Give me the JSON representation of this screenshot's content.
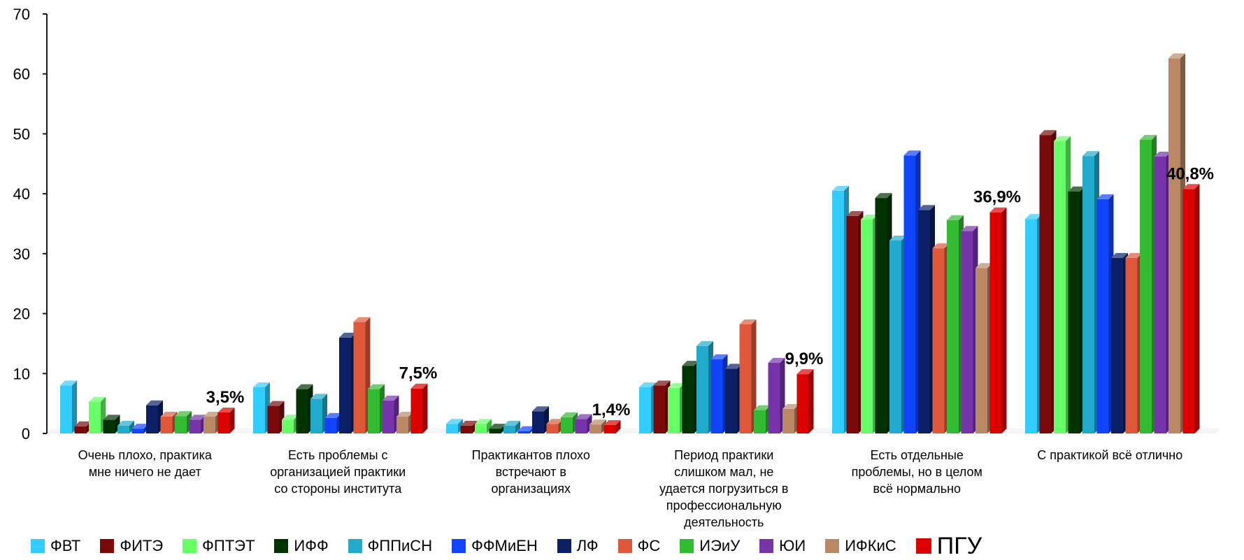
{
  "chart_data": {
    "type": "bar",
    "title": "",
    "xlabel": "",
    "ylabel": "",
    "ylim": [
      0,
      70
    ],
    "yticks": [
      0,
      10,
      20,
      30,
      40,
      50,
      60,
      70
    ],
    "grid": false,
    "legend_position": "bottom",
    "categories": [
      [
        "Очень плохо, практика",
        "мне ничего не дает"
      ],
      [
        "Есть проблемы с",
        "организацией практики",
        "со стороны института"
      ],
      [
        "Практикантов плохо",
        "встречают в",
        "организациях"
      ],
      [
        "Период практики",
        "слишком мал, не",
        "удается погрузиться в",
        "профессиональную",
        "деятельность"
      ],
      [
        "Есть отдельные",
        "проблемы, но в целом",
        "всё нормально"
      ],
      [
        "С практикой всё отлично"
      ]
    ],
    "series": [
      {
        "name": "ФВТ",
        "color": "#33CCFF",
        "values": [
          8.0,
          7.7,
          1.6,
          7.7,
          40.5,
          35.8
        ]
      },
      {
        "name": "ФИТЭ",
        "color": "#7A0A0A",
        "values": [
          1.2,
          4.6,
          1.3,
          8.0,
          36.3,
          49.8
        ]
      },
      {
        "name": "ФПТЭТ",
        "color": "#66FF66",
        "values": [
          5.3,
          2.3,
          1.6,
          7.6,
          35.7,
          48.8
        ]
      },
      {
        "name": "ИФФ",
        "color": "#003300",
        "values": [
          2.3,
          7.4,
          0.8,
          11.3,
          39.3,
          40.4
        ]
      },
      {
        "name": "ФППиСН",
        "color": "#22AACC",
        "values": [
          1.3,
          5.8,
          1.3,
          14.6,
          32.2,
          46.3
        ]
      },
      {
        "name": "ФФМиЕН",
        "color": "#1144FF",
        "values": [
          0.8,
          2.6,
          0.4,
          12.4,
          46.4,
          39.1
        ]
      },
      {
        "name": "ЛФ",
        "color": "#0A1F66",
        "values": [
          4.7,
          16.0,
          3.7,
          10.8,
          37.3,
          29.3
        ]
      },
      {
        "name": "ФС",
        "color": "#E0583A",
        "values": [
          2.8,
          18.6,
          1.6,
          18.2,
          30.9,
          29.3
        ]
      },
      {
        "name": "ИЭиУ",
        "color": "#33BB33",
        "values": [
          2.9,
          7.4,
          2.7,
          3.9,
          35.6,
          49.0
        ]
      },
      {
        "name": "ЮИ",
        "color": "#7733AA",
        "values": [
          2.3,
          5.5,
          2.4,
          11.8,
          33.8,
          46.2
        ]
      },
      {
        "name": "ИФКиС",
        "color": "#BB8866",
        "values": [
          2.8,
          2.8,
          1.5,
          4.1,
          27.6,
          62.6
        ]
      },
      {
        "name": "ПГУ",
        "color": "#DD0000",
        "values": [
          3.5,
          7.5,
          1.4,
          9.9,
          36.9,
          40.8
        ]
      }
    ],
    "data_labels": [
      "3,5%",
      "7,5%",
      "1,4%",
      "9,9%",
      "36,9%",
      "40,8%"
    ]
  }
}
